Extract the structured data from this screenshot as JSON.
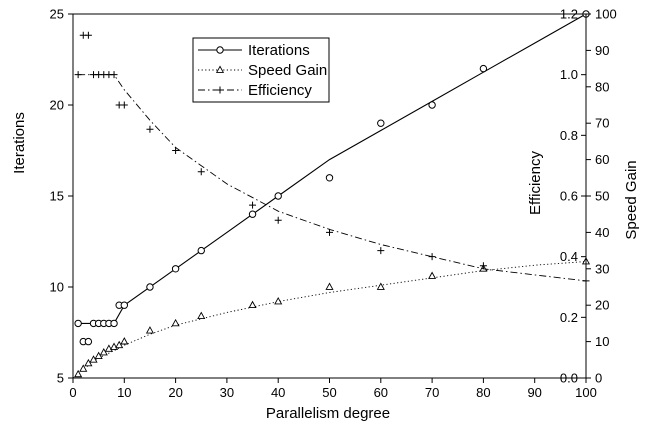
{
  "chart_data": {
    "type": "line",
    "title": "",
    "xlabel": "Parallelism degree",
    "ylabel_left_outer": "Iterations",
    "ylabel_right_inner": "Efficiency",
    "ylabel_right_outer": "Speed Gain",
    "xlim": [
      0,
      100
    ],
    "x_ticks": [
      0,
      10,
      20,
      30,
      40,
      50,
      60,
      70,
      80,
      90,
      100
    ],
    "axes": {
      "iterations": {
        "lim": [
          5,
          25
        ],
        "ticks": [
          5,
          10,
          15,
          20,
          25
        ]
      },
      "efficiency": {
        "lim": [
          0,
          1.2
        ],
        "ticks": [
          0.0,
          0.2,
          0.4,
          0.6,
          0.8,
          1.0,
          1.2
        ],
        "tick_labels": [
          "0.0",
          "0.2",
          "0.4",
          "0.6",
          "0.8",
          "1.0",
          "1.2"
        ]
      },
      "speed_gain": {
        "lim": [
          0,
          100
        ],
        "ticks": [
          0,
          10,
          20,
          30,
          40,
          50,
          60,
          70,
          80,
          90,
          100
        ]
      }
    },
    "grid": false,
    "legend_position": "top-center",
    "series": [
      {
        "name": "Iterations",
        "axis": "iterations",
        "marker": "circle",
        "line_style": "solid",
        "points": [
          [
            1,
            8
          ],
          [
            2,
            7
          ],
          [
            3,
            7
          ],
          [
            4,
            8
          ],
          [
            5,
            8
          ],
          [
            6,
            8
          ],
          [
            7,
            8
          ],
          [
            8,
            8
          ],
          [
            9,
            9
          ],
          [
            10,
            9
          ],
          [
            15,
            10
          ],
          [
            20,
            11
          ],
          [
            25,
            12
          ],
          [
            35,
            14
          ],
          [
            40,
            15
          ],
          [
            50,
            16
          ],
          [
            60,
            19
          ],
          [
            70,
            20
          ],
          [
            80,
            22
          ],
          [
            100,
            25
          ]
        ],
        "fit": [
          [
            1,
            8
          ],
          [
            8,
            8
          ],
          [
            10,
            9
          ],
          [
            20,
            11
          ],
          [
            30,
            13
          ],
          [
            40,
            15
          ],
          [
            50,
            17
          ],
          [
            60,
            18.6
          ],
          [
            70,
            20.2
          ],
          [
            80,
            21.8
          ],
          [
            90,
            23.4
          ],
          [
            100,
            25
          ]
        ]
      },
      {
        "name": "Speed Gain",
        "axis": "speed_gain",
        "marker": "triangle",
        "line_style": "dotted",
        "points": [
          [
            1,
            1
          ],
          [
            2,
            2.5
          ],
          [
            3,
            4
          ],
          [
            4,
            5
          ],
          [
            5,
            6
          ],
          [
            6,
            7
          ],
          [
            7,
            8
          ],
          [
            8,
            8.5
          ],
          [
            9,
            9
          ],
          [
            10,
            10
          ],
          [
            15,
            13
          ],
          [
            20,
            15
          ],
          [
            25,
            17
          ],
          [
            35,
            20
          ],
          [
            40,
            21
          ],
          [
            50,
            25
          ],
          [
            60,
            25
          ],
          [
            70,
            28
          ],
          [
            80,
            30
          ],
          [
            100,
            32
          ]
        ],
        "fit": [
          [
            0,
            0
          ],
          [
            1,
            1
          ],
          [
            3,
            3.5
          ],
          [
            5,
            5.5
          ],
          [
            8,
            7.5
          ],
          [
            10,
            9
          ],
          [
            15,
            12
          ],
          [
            20,
            14.5
          ],
          [
            30,
            18
          ],
          [
            40,
            21
          ],
          [
            50,
            23.5
          ],
          [
            60,
            25.5
          ],
          [
            70,
            27.5
          ],
          [
            80,
            29.5
          ],
          [
            90,
            31
          ],
          [
            100,
            32
          ]
        ]
      },
      {
        "name": "Efficiency",
        "axis": "efficiency",
        "marker": "plus",
        "line_style": "dash-dot",
        "points": [
          [
            1,
            1.0
          ],
          [
            2,
            1.13
          ],
          [
            3,
            1.13
          ],
          [
            4,
            1.0
          ],
          [
            5,
            1.0
          ],
          [
            6,
            1.0
          ],
          [
            7,
            1.0
          ],
          [
            8,
            1.0
          ],
          [
            9,
            0.9
          ],
          [
            10,
            0.9
          ],
          [
            15,
            0.82
          ],
          [
            20,
            0.75
          ],
          [
            25,
            0.68
          ],
          [
            35,
            0.57
          ],
          [
            40,
            0.52
          ],
          [
            50,
            0.48
          ],
          [
            60,
            0.42
          ],
          [
            70,
            0.4
          ],
          [
            80,
            0.37
          ],
          [
            100,
            0.32
          ]
        ],
        "fit": [
          [
            1,
            1.0
          ],
          [
            8,
            1.0
          ],
          [
            10,
            0.95
          ],
          [
            15,
            0.85
          ],
          [
            20,
            0.76
          ],
          [
            25,
            0.7
          ],
          [
            30,
            0.64
          ],
          [
            40,
            0.55
          ],
          [
            50,
            0.49
          ],
          [
            60,
            0.44
          ],
          [
            70,
            0.4
          ],
          [
            80,
            0.36
          ],
          [
            90,
            0.34
          ],
          [
            100,
            0.32
          ]
        ]
      }
    ]
  }
}
